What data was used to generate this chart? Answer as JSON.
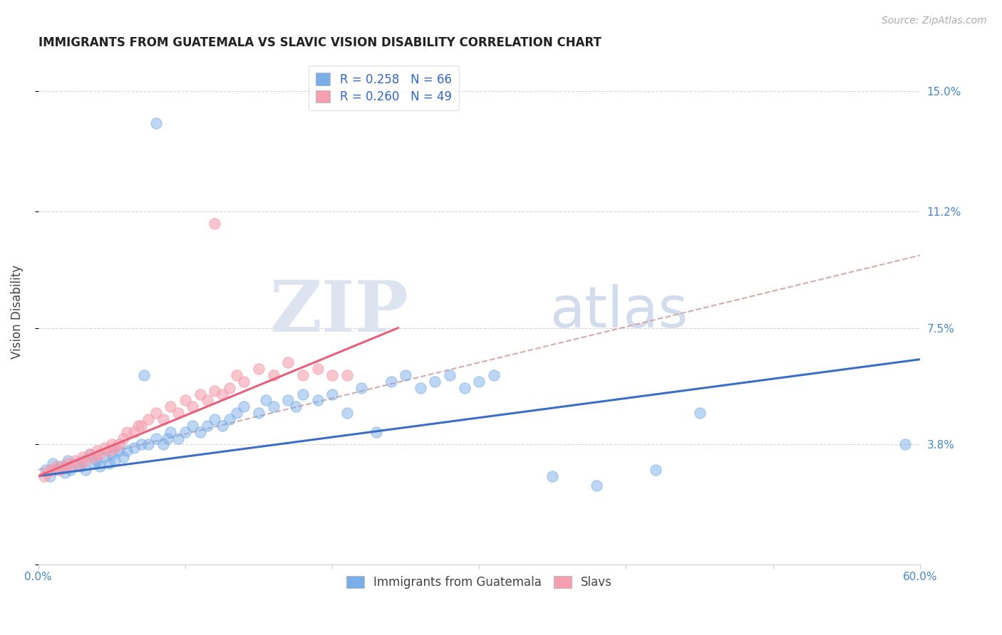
{
  "title": "IMMIGRANTS FROM GUATEMALA VS SLAVIC VISION DISABILITY CORRELATION CHART",
  "source": "Source: ZipAtlas.com",
  "ylabel": "Vision Disability",
  "yticks": [
    0.0,
    0.038,
    0.075,
    0.112,
    0.15
  ],
  "ytick_labels": [
    "",
    "3.8%",
    "7.5%",
    "11.2%",
    "15.0%"
  ],
  "xlim": [
    0.0,
    0.6
  ],
  "ylim": [
    0.0,
    0.16
  ],
  "legend_r1": "R = 0.258",
  "legend_n1": "N = 66",
  "legend_r2": "R = 0.260",
  "legend_n2": "N = 49",
  "color_blue": "#7aaee8",
  "color_pink": "#f5a0b0",
  "line_blue": "#3a6fc4",
  "line_pink": "#e8607a",
  "line_dashed": "#d4aaaa",
  "watermark_zip": "ZIP",
  "watermark_atlas": "atlas",
  "blue_scatter_x": [
    0.005,
    0.008,
    0.01,
    0.012,
    0.015,
    0.018,
    0.02,
    0.022,
    0.025,
    0.028,
    0.03,
    0.032,
    0.035,
    0.038,
    0.04,
    0.042,
    0.045,
    0.048,
    0.05,
    0.052,
    0.055,
    0.058,
    0.06,
    0.065,
    0.07,
    0.072,
    0.075,
    0.08,
    0.085,
    0.088,
    0.09,
    0.095,
    0.1,
    0.105,
    0.11,
    0.115,
    0.12,
    0.125,
    0.13,
    0.135,
    0.14,
    0.15,
    0.155,
    0.16,
    0.17,
    0.175,
    0.18,
    0.19,
    0.2,
    0.21,
    0.22,
    0.23,
    0.24,
    0.25,
    0.26,
    0.27,
    0.28,
    0.29,
    0.3,
    0.31,
    0.35,
    0.38,
    0.42,
    0.45,
    0.59,
    0.08
  ],
  "blue_scatter_y": [
    0.03,
    0.028,
    0.032,
    0.03,
    0.031,
    0.029,
    0.033,
    0.03,
    0.032,
    0.031,
    0.033,
    0.03,
    0.035,
    0.032,
    0.033,
    0.031,
    0.034,
    0.032,
    0.035,
    0.033,
    0.036,
    0.034,
    0.036,
    0.037,
    0.038,
    0.06,
    0.038,
    0.04,
    0.038,
    0.04,
    0.042,
    0.04,
    0.042,
    0.044,
    0.042,
    0.044,
    0.046,
    0.044,
    0.046,
    0.048,
    0.05,
    0.048,
    0.052,
    0.05,
    0.052,
    0.05,
    0.054,
    0.052,
    0.054,
    0.048,
    0.056,
    0.042,
    0.058,
    0.06,
    0.056,
    0.058,
    0.06,
    0.056,
    0.058,
    0.06,
    0.028,
    0.025,
    0.03,
    0.048,
    0.038,
    0.14
  ],
  "pink_scatter_x": [
    0.004,
    0.006,
    0.008,
    0.01,
    0.012,
    0.015,
    0.018,
    0.02,
    0.022,
    0.025,
    0.028,
    0.03,
    0.032,
    0.035,
    0.038,
    0.04,
    0.042,
    0.045,
    0.048,
    0.05,
    0.052,
    0.055,
    0.058,
    0.06,
    0.065,
    0.068,
    0.07,
    0.075,
    0.08,
    0.085,
    0.09,
    0.095,
    0.1,
    0.105,
    0.11,
    0.115,
    0.12,
    0.125,
    0.13,
    0.135,
    0.14,
    0.15,
    0.16,
    0.17,
    0.18,
    0.19,
    0.2,
    0.21,
    0.12
  ],
  "pink_scatter_y": [
    0.028,
    0.029,
    0.03,
    0.03,
    0.031,
    0.03,
    0.031,
    0.032,
    0.031,
    0.033,
    0.032,
    0.034,
    0.033,
    0.035,
    0.034,
    0.036,
    0.035,
    0.037,
    0.036,
    0.038,
    0.037,
    0.038,
    0.04,
    0.042,
    0.042,
    0.044,
    0.044,
    0.046,
    0.048,
    0.046,
    0.05,
    0.048,
    0.052,
    0.05,
    0.054,
    0.052,
    0.055,
    0.054,
    0.056,
    0.06,
    0.058,
    0.062,
    0.06,
    0.064,
    0.06,
    0.062,
    0.06,
    0.06,
    0.108
  ],
  "blue_line_x": [
    0.0,
    0.6
  ],
  "blue_line_y": [
    0.028,
    0.065
  ],
  "pink_line_x": [
    0.0,
    0.245
  ],
  "pink_line_y": [
    0.028,
    0.075
  ],
  "dashed_line_x": [
    0.0,
    0.6
  ],
  "dashed_line_y": [
    0.03,
    0.098
  ]
}
